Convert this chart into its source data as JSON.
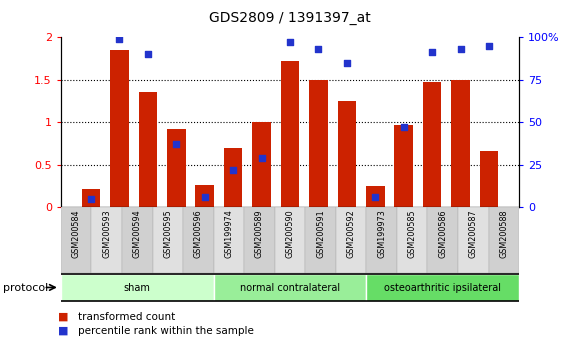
{
  "title": "GDS2809 / 1391397_at",
  "samples": [
    "GSM200584",
    "GSM200593",
    "GSM200594",
    "GSM200595",
    "GSM200596",
    "GSM199974",
    "GSM200589",
    "GSM200590",
    "GSM200591",
    "GSM200592",
    "GSM199973",
    "GSM200585",
    "GSM200586",
    "GSM200587",
    "GSM200588"
  ],
  "transformed_count": [
    0.21,
    1.85,
    1.35,
    0.92,
    0.26,
    0.69,
    1.0,
    1.72,
    1.49,
    1.25,
    0.25,
    0.97,
    1.47,
    1.49,
    0.66
  ],
  "percentile_rank_pct": [
    5,
    99,
    90,
    37,
    6,
    22,
    29,
    97,
    93,
    85,
    6,
    47,
    91,
    93,
    95
  ],
  "groups": [
    {
      "label": "sham",
      "start": 0,
      "end": 4,
      "color": "#ccffcc"
    },
    {
      "label": "normal contralateral",
      "start": 5,
      "end": 9,
      "color": "#99ee99"
    },
    {
      "label": "osteoarthritic ipsilateral",
      "start": 10,
      "end": 14,
      "color": "#66dd66"
    }
  ],
  "bar_color": "#cc2200",
  "dot_color": "#2233cc",
  "ylim_left": [
    0,
    2.0
  ],
  "ylim_right": [
    0,
    100
  ],
  "yticks_left": [
    0,
    0.5,
    1.0,
    1.5,
    2.0
  ],
  "ytick_labels_left": [
    "0",
    "0.5",
    "1",
    "1.5",
    "2"
  ],
  "yticks_right": [
    0,
    25,
    50,
    75,
    100
  ],
  "ytick_labels_right": [
    "0",
    "25",
    "50",
    "75",
    "100%"
  ],
  "grid_values": [
    0.5,
    1.0,
    1.5
  ],
  "bar_width": 0.65,
  "legend": [
    {
      "label": "transformed count",
      "color": "#cc2200"
    },
    {
      "label": "percentile rank within the sample",
      "color": "#2233cc"
    }
  ],
  "protocol_label": "protocol"
}
